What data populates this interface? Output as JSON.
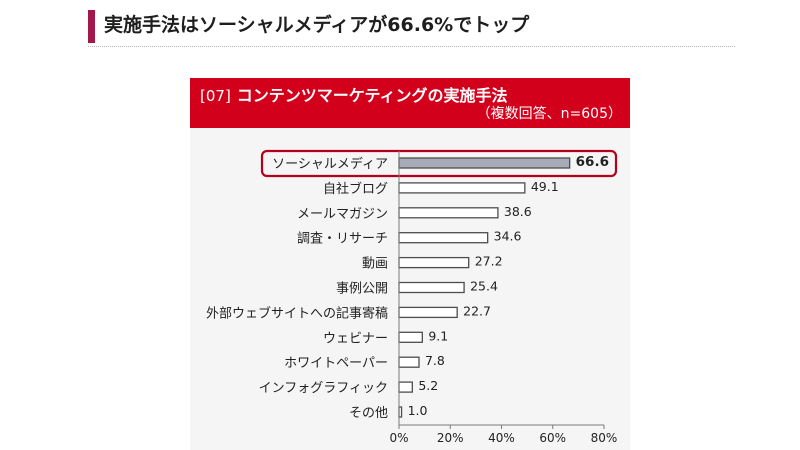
{
  "page": {
    "heading": "実施手法はソーシャルメディアが66.6%でトップ"
  },
  "colors": {
    "heading_accent": "#a3174a",
    "chart_header_bg": "#d3001c",
    "chart_body_bg": "#f5f5f5",
    "bar_fill": "#ffffff",
    "bar_stroke": "#4d4d4d",
    "highlight_fill": "#a7abb8",
    "highlight_outline": "#b5001b",
    "axis": "#7a7a7a"
  },
  "chart_data": {
    "type": "bar",
    "orientation": "horizontal",
    "figure_number": "[07]",
    "title": "コンテンツマーケティングの実施手法",
    "subtitle": "（複数回答、n=605）",
    "categories": [
      "ソーシャルメディア",
      "自社ブログ",
      "メールマガジン",
      "調査・リサーチ",
      "動画",
      "事例公開",
      "外部ウェブサイトへの記事寄稿",
      "ウェビナー",
      "ホワイトペーパー",
      "インフォグラフィック",
      "その他"
    ],
    "values": [
      66.6,
      49.1,
      38.6,
      34.6,
      27.2,
      25.4,
      22.7,
      9.1,
      7.8,
      5.2,
      1.0
    ],
    "x_ticks": [
      0,
      20,
      40,
      60,
      80
    ],
    "x_tick_labels": [
      "0%",
      "20%",
      "40%",
      "60%",
      "80%"
    ],
    "xlim": [
      0,
      80
    ],
    "xlabel": "",
    "ylabel": "",
    "grid": false,
    "legend": "none",
    "highlight_index": 0
  }
}
